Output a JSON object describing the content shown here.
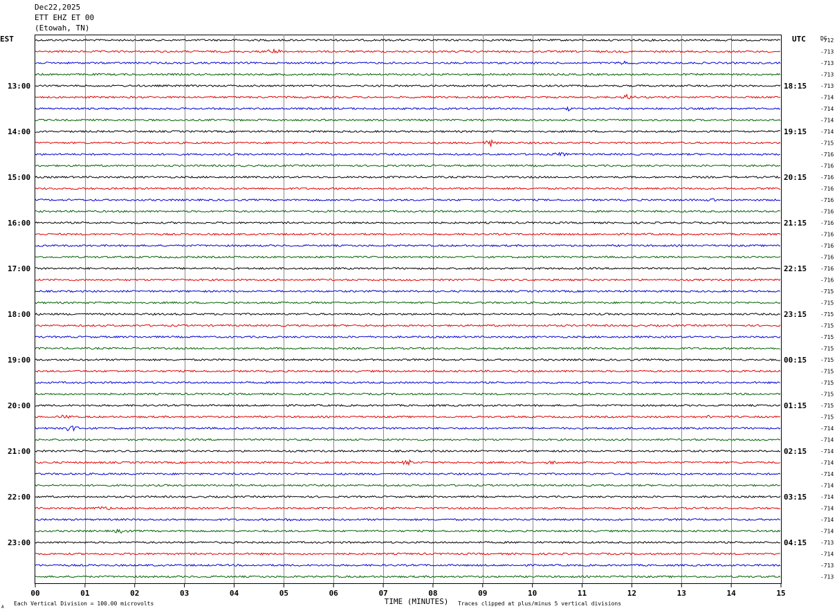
{
  "header": {
    "date": "Dec22,2025",
    "station": "ETT EHZ ET 00",
    "location": "(Etowah, TN)"
  },
  "left_timezone": "EST",
  "right_timezone": "UTC",
  "dc_label": "DC",
  "footer": {
    "scale_note": "Each Vertical Division =  100.00 microvolts",
    "clip_note": "Traces clipped at plus/minus 5 vertical divisions",
    "corner_mark": "A"
  },
  "chart_data": {
    "type": "line",
    "title": "",
    "xlabel": "TIME (MINUTES)",
    "ylabel": "",
    "xlim": [
      0,
      15
    ],
    "x_ticks": [
      "00",
      "01",
      "02",
      "03",
      "04",
      "05",
      "06",
      "07",
      "08",
      "09",
      "10",
      "11",
      "12",
      "13",
      "14",
      "15"
    ],
    "est_hour_labels": [
      "13:00",
      "14:00",
      "15:00",
      "16:00",
      "17:00",
      "18:00",
      "19:00",
      "20:00",
      "21:00",
      "22:00",
      "23:00"
    ],
    "utc_hour_labels": [
      "18:15",
      "19:15",
      "20:15",
      "21:15",
      "22:15",
      "23:15",
      "00:15",
      "01:15",
      "02:15",
      "03:15",
      "04:15"
    ],
    "trace_color_cycle": [
      "#000000",
      "#e00000",
      "#0000d0",
      "#006000"
    ],
    "trace_count": 48,
    "dc_offsets": [
      "-712",
      "-713",
      "-713",
      "-713",
      "-713",
      "-714",
      "-714",
      "-714",
      "-714",
      "-715",
      "-716",
      "-716",
      "-716",
      "-716",
      "-716",
      "-716",
      "-716",
      "-716",
      "-716",
      "-716",
      "-716",
      "-716",
      "-715",
      "-715",
      "-715",
      "-715",
      "-715",
      "-715",
      "-715",
      "-715",
      "-715",
      "-715",
      "-715",
      "-715",
      "-714",
      "-714",
      "-714",
      "-714",
      "-714",
      "-714",
      "-714",
      "-714",
      "-714",
      "-714",
      "-713",
      "-714",
      "-713",
      "-713"
    ],
    "events": [
      {
        "trace": 1,
        "minute": 4.8,
        "amplitude": 5
      },
      {
        "trace": 2,
        "minute": 11.9,
        "amplitude": 3
      },
      {
        "trace": 5,
        "minute": 11.9,
        "amplitude": 5
      },
      {
        "trace": 6,
        "minute": 10.7,
        "amplitude": 4
      },
      {
        "trace": 9,
        "minute": 9.15,
        "amplitude": 6
      },
      {
        "trace": 10,
        "minute": 10.6,
        "amplitude": 4
      },
      {
        "trace": 14,
        "minute": 13.7,
        "amplitude": 3
      },
      {
        "trace": 33,
        "minute": 0.6,
        "amplitude": 4
      },
      {
        "trace": 33,
        "minute": 13.5,
        "amplitude": 3
      },
      {
        "trace": 34,
        "minute": 0.7,
        "amplitude": 7
      },
      {
        "trace": 37,
        "minute": 7.5,
        "amplitude": 5
      },
      {
        "trace": 37,
        "minute": 10.4,
        "amplitude": 3
      },
      {
        "trace": 41,
        "minute": 1.4,
        "amplitude": 4
      },
      {
        "trace": 42,
        "minute": 5.2,
        "amplitude": 3
      },
      {
        "trace": 43,
        "minute": 1.7,
        "amplitude": 3
      }
    ]
  }
}
